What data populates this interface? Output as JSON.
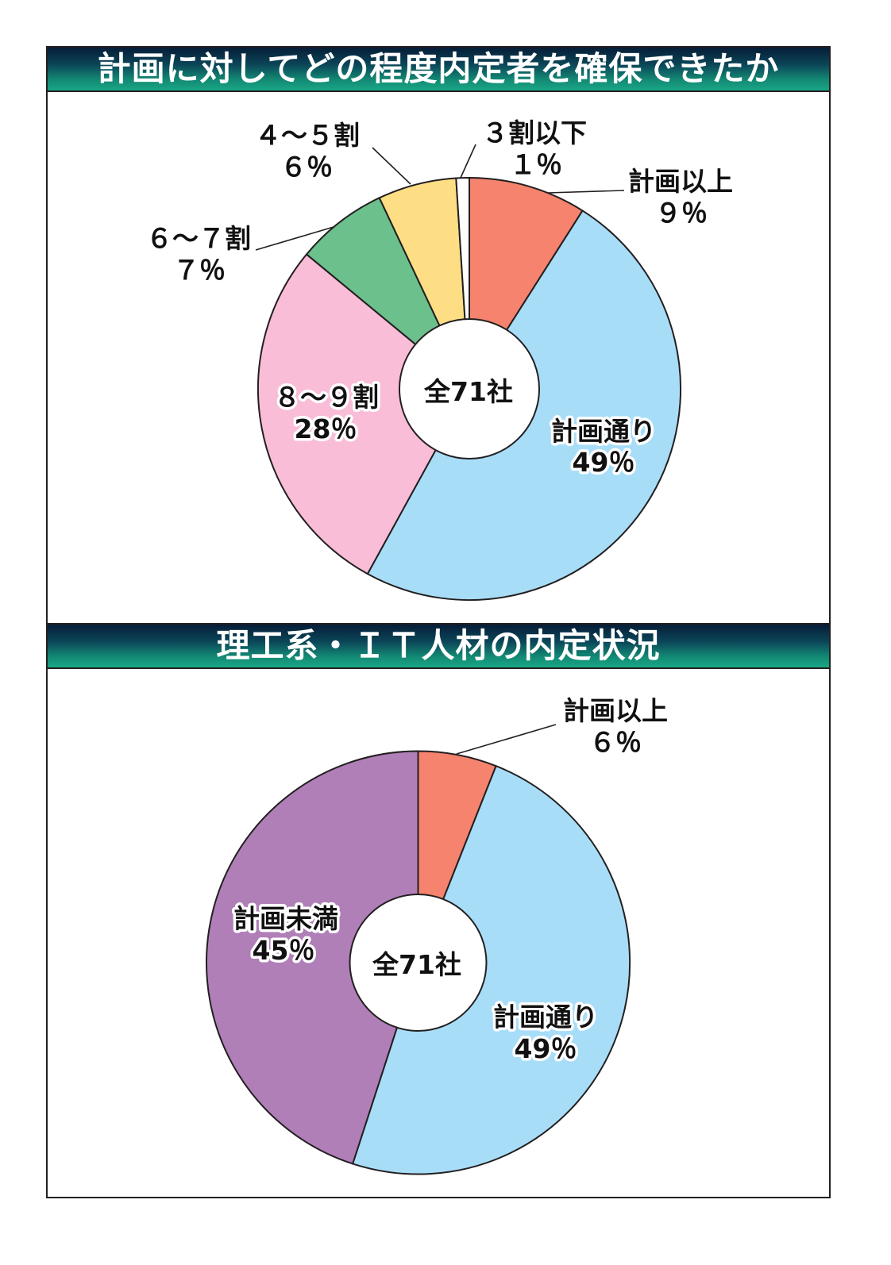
{
  "theme": {
    "title_bar_gradient": [
      "#061d38",
      "#0b4658",
      "#138a74",
      "#19a685"
    ],
    "title_text": "#ffffff",
    "line": "#231f20"
  },
  "chart_data": [
    {
      "type": "pie",
      "donut": true,
      "title": "計画に対してどの程度内定者を確保できたか",
      "center_label": "全71社",
      "categories": [
        "計画以上",
        "計画通り",
        "８～９割",
        "６～７割",
        "４～５割",
        "３割以下"
      ],
      "values": [
        9,
        49,
        28,
        7,
        6,
        1
      ],
      "value_labels": [
        "９％",
        "49％",
        "28％",
        "７％",
        "６％",
        "１％"
      ],
      "colors": [
        "#f5836d",
        "#a8ddf8",
        "#f9bdd8",
        "#6bc08c",
        "#fede84",
        "#ffffff"
      ]
    },
    {
      "type": "pie",
      "donut": true,
      "title": "理工系・ＩＴ人材の内定状況",
      "center_label": "全71社",
      "categories": [
        "計画以上",
        "計画通り",
        "計画未満"
      ],
      "values": [
        6,
        49,
        45
      ],
      "value_labels": [
        "６％",
        "49％",
        "45％"
      ],
      "colors": [
        "#f5836d",
        "#a8ddf8",
        "#b07fb8"
      ]
    }
  ]
}
